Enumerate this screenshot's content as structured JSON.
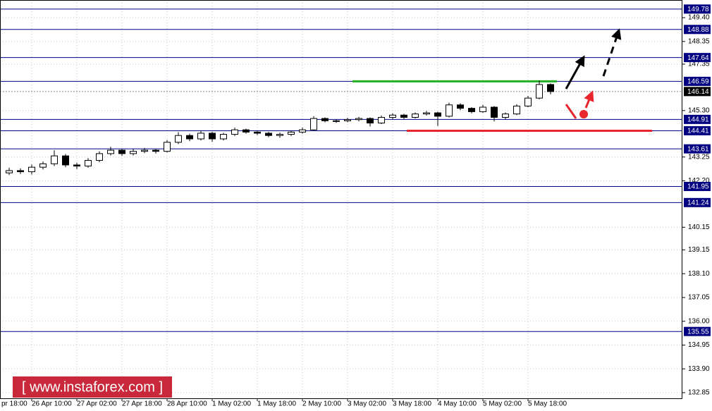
{
  "chart_data": {
    "type": "candlestick",
    "categories": [
      "pr 18:00",
      null,
      "26 Apr 10:00",
      null,
      null,
      null,
      "27 Apr 02:00",
      null,
      null,
      null,
      "27 Apr 18:00",
      null,
      null,
      null,
      "28 Apr 10:00",
      null,
      null,
      null,
      "1 May 02:00",
      null,
      null,
      null,
      "1 May 18:00",
      null,
      null,
      null,
      "2 May 10:00",
      null,
      null,
      null,
      "3 May 02:00",
      null,
      null,
      null,
      "3 May 18:00",
      null,
      null,
      null,
      "4 May 10:00",
      null,
      null,
      null,
      "5 May 02:00",
      null,
      null,
      null,
      "5 May 18:00",
      null,
      null
    ],
    "open": [
      142.55,
      142.65,
      142.6,
      142.8,
      142.95,
      143.3,
      142.9,
      142.85,
      143.1,
      143.4,
      143.55,
      143.4,
      143.5,
      143.55,
      143.5,
      143.9,
      144.2,
      144.05,
      144.3,
      144.05,
      144.25,
      144.45,
      144.35,
      144.3,
      144.2,
      144.25,
      144.35,
      144.45,
      144.95,
      144.85,
      144.85,
      144.9,
      144.95,
      144.75,
      145.0,
      145.1,
      145.0,
      145.15,
      145.2,
      145.05,
      145.55,
      145.4,
      145.25,
      145.45,
      145.0,
      145.15,
      145.5,
      145.85,
      146.45
    ],
    "high": [
      142.78,
      142.75,
      142.92,
      143.05,
      143.55,
      143.38,
      143.0,
      143.2,
      143.5,
      143.7,
      143.62,
      143.6,
      143.65,
      143.62,
      144.0,
      144.35,
      144.28,
      144.4,
      144.36,
      144.32,
      144.55,
      144.5,
      144.42,
      144.36,
      144.33,
      144.42,
      144.55,
      145.05,
      145.0,
      144.92,
      144.98,
      145.02,
      145.0,
      145.08,
      145.18,
      145.16,
      145.22,
      145.28,
      145.25,
      145.65,
      145.62,
      145.45,
      145.55,
      145.5,
      145.22,
      145.58,
      145.95,
      146.63,
      146.5
    ],
    "low": [
      142.45,
      142.5,
      142.48,
      142.7,
      142.85,
      142.8,
      142.72,
      142.78,
      143.02,
      143.32,
      143.3,
      143.32,
      143.42,
      143.4,
      143.45,
      143.82,
      143.95,
      143.98,
      143.92,
      143.98,
      144.18,
      144.28,
      144.22,
      144.12,
      144.1,
      144.18,
      144.28,
      144.4,
      144.78,
      144.76,
      144.78,
      144.82,
      144.6,
      144.7,
      144.92,
      144.93,
      144.95,
      145.08,
      144.62,
      145.0,
      145.32,
      145.18,
      145.2,
      144.82,
      144.92,
      145.1,
      145.45,
      145.8,
      146.02
    ],
    "close": [
      142.65,
      142.6,
      142.8,
      142.95,
      143.3,
      142.9,
      142.85,
      143.1,
      143.4,
      143.55,
      143.4,
      143.5,
      143.55,
      143.5,
      143.9,
      144.2,
      144.05,
      144.3,
      144.05,
      144.25,
      144.45,
      144.35,
      144.3,
      144.2,
      144.25,
      144.35,
      144.45,
      144.95,
      144.85,
      144.85,
      144.9,
      144.95,
      144.75,
      145.0,
      145.1,
      145.0,
      145.15,
      145.2,
      145.05,
      145.55,
      145.4,
      145.25,
      145.45,
      145.0,
      145.15,
      145.5,
      145.85,
      146.45,
      146.14
    ],
    "ylim": [
      132.6,
      150.18
    ],
    "yticks": [
      {
        "value": 149.4,
        "label": "149.40"
      },
      148.35,
      147.35,
      {
        "value": 145.3,
        "label": "145.30"
      },
      143.25,
      {
        "value": 142.2,
        "label": "142.20"
      },
      140.15,
      139.15,
      {
        "value": 138.1,
        "label": "138.10"
      },
      137.05,
      {
        "value": 136,
        "label": "136.00"
      },
      134.95,
      {
        "value": 133.9,
        "label": "133.90"
      },
      132.85
    ],
    "grid": true,
    "levels": [
      149.78,
      148.88,
      147.64,
      146.59,
      144.91,
      144.41,
      143.61,
      141.95,
      141.24,
      135.55
    ],
    "level_color": "#000080",
    "current_price": 146.14,
    "resistance_level": 3,
    "resistance_color": "#22b022",
    "support_level": 5,
    "support_color": "#e8262e",
    "watermark": "[ www.instaforex.com ]"
  }
}
